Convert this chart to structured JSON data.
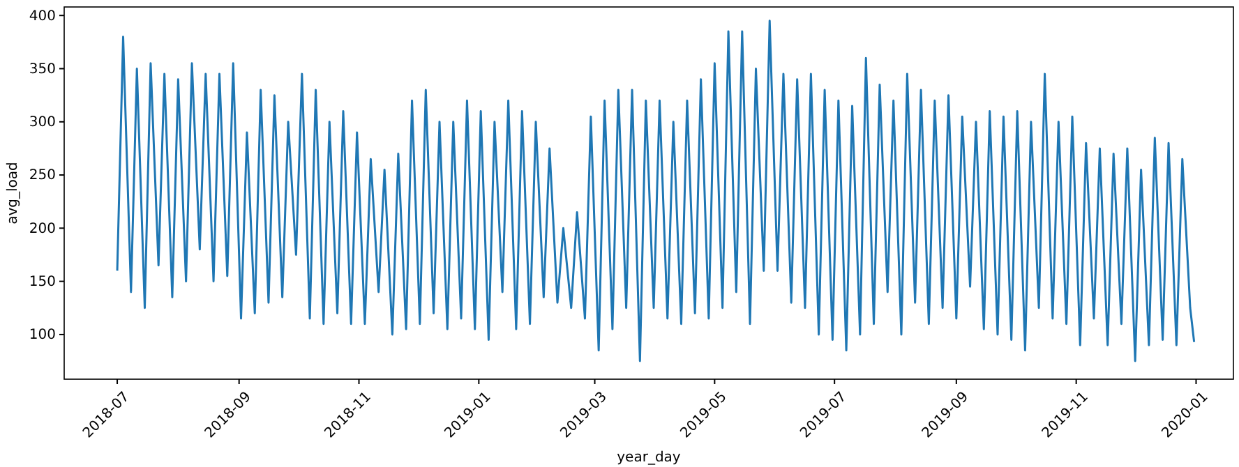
{
  "chart_data": {
    "type": "line",
    "xlabel": "year_day",
    "ylabel": "avg_load",
    "xlim": [
      "2018-06-04",
      "2020-01-20"
    ],
    "ylim": [
      58,
      408
    ],
    "xticks": [
      "2018-07",
      "2018-09",
      "2018-11",
      "2019-01",
      "2019-03",
      "2019-05",
      "2019-07",
      "2019-09",
      "2019-11",
      "2020-01"
    ],
    "yticks": [
      100,
      150,
      200,
      250,
      300,
      350,
      400
    ],
    "series": [
      {
        "color": "#1f77b4",
        "x": [
          "2018-07-01",
          "2018-07-04",
          "2018-07-08",
          "2018-07-11",
          "2018-07-15",
          "2018-07-18",
          "2018-07-22",
          "2018-07-25",
          "2018-07-29",
          "2018-08-01",
          "2018-08-05",
          "2018-08-08",
          "2018-08-12",
          "2018-08-15",
          "2018-08-19",
          "2018-08-22",
          "2018-08-26",
          "2018-08-29",
          "2018-09-02",
          "2018-09-05",
          "2018-09-09",
          "2018-09-12",
          "2018-09-16",
          "2018-09-19",
          "2018-09-23",
          "2018-09-26",
          "2018-09-30",
          "2018-10-03",
          "2018-10-07",
          "2018-10-10",
          "2018-10-14",
          "2018-10-17",
          "2018-10-21",
          "2018-10-24",
          "2018-10-28",
          "2018-10-31",
          "2018-11-04",
          "2018-11-07",
          "2018-11-11",
          "2018-11-14",
          "2018-11-18",
          "2018-11-21",
          "2018-11-25",
          "2018-11-28",
          "2018-12-02",
          "2018-12-05",
          "2018-12-09",
          "2018-12-12",
          "2018-12-16",
          "2018-12-19",
          "2018-12-23",
          "2018-12-26",
          "2018-12-30",
          "2019-01-02",
          "2019-01-06",
          "2019-01-09",
          "2019-01-13",
          "2019-01-16",
          "2019-01-20",
          "2019-01-23",
          "2019-01-27",
          "2019-01-30",
          "2019-02-03",
          "2019-02-06",
          "2019-02-10",
          "2019-02-13",
          "2019-02-17",
          "2019-02-20",
          "2019-02-24",
          "2019-02-27",
          "2019-03-03",
          "2019-03-06",
          "2019-03-10",
          "2019-03-13",
          "2019-03-17",
          "2019-03-20",
          "2019-03-24",
          "2019-03-27",
          "2019-03-31",
          "2019-04-03",
          "2019-04-07",
          "2019-04-10",
          "2019-04-14",
          "2019-04-17",
          "2019-04-21",
          "2019-04-24",
          "2019-04-28",
          "2019-05-01",
          "2019-05-05",
          "2019-05-08",
          "2019-05-12",
          "2019-05-15",
          "2019-05-19",
          "2019-05-22",
          "2019-05-26",
          "2019-05-29",
          "2019-06-02",
          "2019-06-05",
          "2019-06-09",
          "2019-06-12",
          "2019-06-16",
          "2019-06-19",
          "2019-06-23",
          "2019-06-26",
          "2019-06-30",
          "2019-07-03",
          "2019-07-07",
          "2019-07-10",
          "2019-07-14",
          "2019-07-17",
          "2019-07-21",
          "2019-07-24",
          "2019-07-28",
          "2019-07-31",
          "2019-08-04",
          "2019-08-07",
          "2019-08-11",
          "2019-08-14",
          "2019-08-18",
          "2019-08-21",
          "2019-08-25",
          "2019-08-28",
          "2019-09-01",
          "2019-09-04",
          "2019-09-08",
          "2019-09-11",
          "2019-09-15",
          "2019-09-18",
          "2019-09-22",
          "2019-09-25",
          "2019-09-29",
          "2019-10-02",
          "2019-10-06",
          "2019-10-09",
          "2019-10-13",
          "2019-10-16",
          "2019-10-20",
          "2019-10-23",
          "2019-10-27",
          "2019-10-30",
          "2019-11-03",
          "2019-11-06",
          "2019-11-10",
          "2019-11-13",
          "2019-11-17",
          "2019-11-20",
          "2019-11-24",
          "2019-11-27",
          "2019-12-01",
          "2019-12-04",
          "2019-12-08",
          "2019-12-11",
          "2019-12-15",
          "2019-12-18",
          "2019-12-22",
          "2019-12-25",
          "2019-12-29",
          "2019-12-31"
        ],
        "values": [
          160,
          380,
          140,
          350,
          125,
          355,
          165,
          345,
          135,
          340,
          150,
          355,
          180,
          345,
          150,
          345,
          155,
          355,
          115,
          290,
          120,
          330,
          130,
          325,
          135,
          300,
          175,
          345,
          115,
          330,
          110,
          300,
          120,
          310,
          110,
          290,
          110,
          265,
          140,
          255,
          100,
          270,
          105,
          320,
          110,
          330,
          120,
          300,
          105,
          300,
          115,
          320,
          105,
          310,
          95,
          300,
          140,
          320,
          105,
          310,
          110,
          300,
          135,
          275,
          130,
          200,
          125,
          215,
          115,
          305,
          85,
          320,
          105,
          330,
          125,
          330,
          75,
          320,
          125,
          320,
          115,
          300,
          110,
          320,
          120,
          340,
          115,
          355,
          125,
          385,
          140,
          385,
          110,
          350,
          160,
          395,
          160,
          345,
          130,
          340,
          125,
          345,
          100,
          330,
          95,
          320,
          85,
          315,
          100,
          360,
          110,
          335,
          140,
          320,
          100,
          345,
          130,
          330,
          110,
          320,
          125,
          325,
          115,
          305,
          145,
          300,
          105,
          310,
          100,
          305,
          95,
          310,
          85,
          300,
          125,
          345,
          115,
          300,
          110,
          305,
          90,
          280,
          115,
          275,
          90,
          270,
          110,
          275,
          75,
          255,
          90,
          285,
          95,
          280,
          90,
          265,
          125,
          93
        ]
      }
    ]
  }
}
